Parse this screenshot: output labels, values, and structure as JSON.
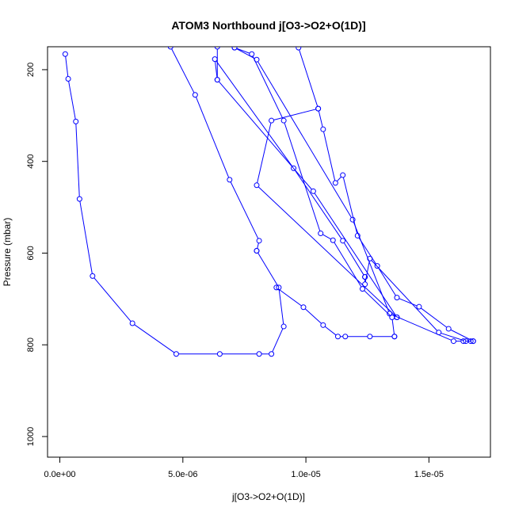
{
  "chart_data": {
    "type": "line",
    "title": "ATOM3 Northbound j[O3->O2+O(1D)]",
    "xlabel": "j[O3->O2+O(1D)]",
    "ylabel": "Pressure (mbar)",
    "xlim": [
      -5e-07,
      1.75e-05
    ],
    "ylim": [
      1045,
      150
    ],
    "y_reversed": true,
    "x_ticks": [
      {
        "value": 0,
        "label": "0.0e+00"
      },
      {
        "value": 5e-06,
        "label": "5.0e-06"
      },
      {
        "value": 1e-05,
        "label": "1.0e-05"
      },
      {
        "value": 1.5e-05,
        "label": "1.5e-05"
      }
    ],
    "y_ticks": [
      {
        "value": 200,
        "label": "200"
      },
      {
        "value": 400,
        "label": "400"
      },
      {
        "value": 600,
        "label": "600"
      },
      {
        "value": 800,
        "label": "800"
      },
      {
        "value": 1000,
        "label": "1000"
      }
    ],
    "color": "#0000ff",
    "marker": "open-circle",
    "series": [
      {
        "x": [
          2.2e-07,
          3.4e-07,
          6.5e-07,
          8e-07,
          1.33e-06,
          2.95e-06,
          4.73e-06,
          6.5e-06,
          8.1e-06,
          8.6e-06,
          9.1e-06,
          8.9e-06,
          8e-06
        ],
        "y": [
          166,
          220,
          313,
          482,
          650,
          753,
          820,
          820,
          820,
          820,
          760,
          675,
          595
        ]
      },
      {
        "x": [
          8e-06,
          8.1e-06,
          6.9e-06,
          5.5e-06,
          4.5e-06
        ],
        "y": [
          595,
          573,
          440,
          255,
          150
        ]
      },
      {
        "x": [
          8.8e-06,
          9.9e-06,
          1.07e-05,
          1.13e-05,
          1.16e-05,
          1.26e-05,
          1.36e-05
        ],
        "y": [
          675,
          718,
          757,
          782,
          782,
          782,
          782
        ]
      },
      {
        "x": [
          1.36e-05,
          1.35e-05,
          1.23e-05,
          1.11e-05,
          1.06e-05,
          9.1e-06,
          7.8e-06,
          7.1e-06
        ],
        "y": [
          782,
          740,
          678,
          572,
          557,
          311,
          166,
          152
        ]
      },
      {
        "x": [
          7.1e-06,
          8e-06,
          1.19e-05,
          1.34e-05,
          1.6e-05,
          1.64e-05,
          1.68e-05
        ],
        "y": [
          152,
          178,
          527,
          732,
          792,
          792,
          792
        ]
      },
      {
        "x": [
          1.68e-05,
          1.58e-05,
          1.46e-05,
          1.37e-05,
          1.29e-05,
          1.21e-05,
          1.15e-05,
          1.12e-05,
          1.07e-05,
          1.05e-05,
          9.7e-06
        ],
        "y": [
          792,
          765,
          717,
          697,
          628,
          562,
          430,
          447,
          330,
          285,
          152
        ]
      },
      {
        "x": [
          6.4e-06,
          6.4e-06,
          6.3e-06,
          9.5e-06,
          1.15e-05,
          1.24e-05
        ],
        "y": [
          150,
          222,
          177,
          415,
          573,
          652
        ]
      },
      {
        "x": [
          1.24e-05,
          1.24e-05,
          1.26e-05,
          1.54e-05,
          1.65e-05,
          1.67e-05
        ],
        "y": [
          652,
          668,
          612,
          773,
          792,
          792
        ]
      },
      {
        "x": [
          6.4e-06,
          1.03e-05,
          1.37e-05
        ],
        "y": [
          222,
          465,
          740
        ]
      },
      {
        "x": [
          1.37e-05,
          8e-06,
          8.6e-06,
          1.05e-05
        ],
        "y": [
          740,
          452,
          311,
          285
        ]
      }
    ]
  }
}
